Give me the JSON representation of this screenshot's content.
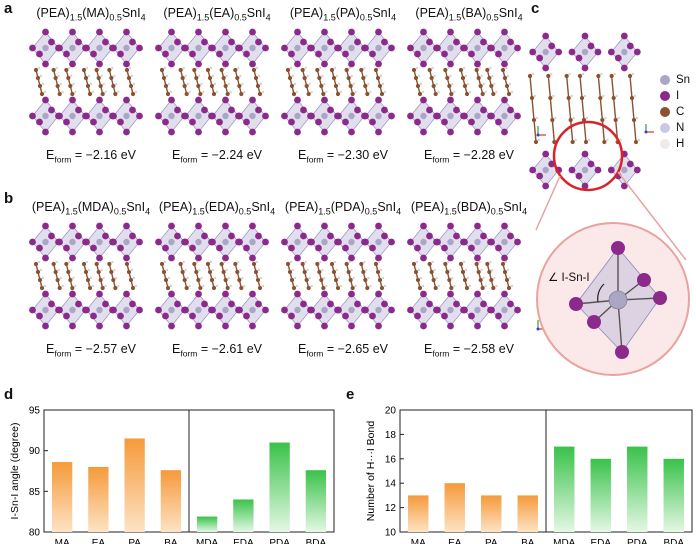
{
  "panels": {
    "a": "a",
    "b": "b",
    "c": "c",
    "d": "d",
    "e": "e"
  },
  "structures_a": [
    {
      "prefix": "(PEA)",
      "s1": "1.5",
      "cation": "(MA)",
      "s2": "0.5",
      "suffix": "SnI",
      "s3": "4",
      "e_label": "E",
      "e_sub": "form",
      "e_value": " = −2.16 eV"
    },
    {
      "prefix": "(PEA)",
      "s1": "1.5",
      "cation": "(EA)",
      "s2": "0.5",
      "suffix": "SnI",
      "s3": "4",
      "e_label": "E",
      "e_sub": "form",
      "e_value": " = −2.24 eV"
    },
    {
      "prefix": "(PEA)",
      "s1": "1.5",
      "cation": "(PA)",
      "s2": "0.5",
      "suffix": "SnI",
      "s3": "4",
      "e_label": "E",
      "e_sub": "form",
      "e_value": " = −2.30 eV"
    },
    {
      "prefix": "(PEA)",
      "s1": "1.5",
      "cation": "(BA)",
      "s2": "0.5",
      "suffix": "SnI",
      "s3": "4",
      "e_label": "E",
      "e_sub": "form",
      "e_value": " = −2.28 eV"
    }
  ],
  "structures_b": [
    {
      "prefix": "(PEA)",
      "s1": "1.5",
      "cation": "(MDA)",
      "s2": "0.5",
      "suffix": "SnI",
      "s3": "4",
      "e_label": "E",
      "e_sub": "form",
      "e_value": " = −2.57 eV"
    },
    {
      "prefix": "(PEA)",
      "s1": "1.5",
      "cation": "(EDA)",
      "s2": "0.5",
      "suffix": "SnI",
      "s3": "4",
      "e_label": "E",
      "e_sub": "form",
      "e_value": " = −2.61 eV"
    },
    {
      "prefix": "(PEA)",
      "s1": "1.5",
      "cation": "(PDA)",
      "s2": "0.5",
      "suffix": "SnI",
      "s3": "4",
      "e_label": "E",
      "e_sub": "form",
      "e_value": " = −2.65 eV"
    },
    {
      "prefix": "(PEA)",
      "s1": "1.5",
      "cation": "(BDA)",
      "s2": "0.5",
      "suffix": "SnI",
      "s3": "4",
      "e_label": "E",
      "e_sub": "form",
      "e_value": " = −2.58 eV"
    }
  ],
  "legend": [
    {
      "label": "Sn",
      "color": "#a9a6c6"
    },
    {
      "label": "I",
      "color": "#8b2a8b"
    },
    {
      "label": "C",
      "color": "#8a5230"
    },
    {
      "label": "N",
      "color": "#c9c9e6"
    },
    {
      "label": "H",
      "color": "#f0eaea"
    }
  ],
  "angle_label": "∠ I-Sn-I",
  "colors": {
    "sn": "#a9a6c6",
    "i": "#8b2a8b",
    "c": "#8a5230",
    "octa": "#c9c3de",
    "zoom": "#d9534f",
    "orange": "#f59a3a",
    "green": "#39c24a"
  },
  "chart_data": [
    {
      "type": "bar",
      "title": "",
      "xlabel": "",
      "ylabel": "I-Sn-I angle (degree)",
      "ylim": [
        80,
        95
      ],
      "yticks": [
        "80",
        "85",
        "90",
        "95"
      ],
      "categories": [
        "MA",
        "EA",
        "PA",
        "BA",
        "MDA",
        "EDA",
        "PDA",
        "BDA"
      ],
      "values": [
        88.6,
        88.0,
        91.5,
        87.6,
        81.9,
        84.0,
        91.0,
        87.6
      ],
      "groups": [
        "mono",
        "mono",
        "mono",
        "mono",
        "di",
        "di",
        "di",
        "di"
      ]
    },
    {
      "type": "bar",
      "title": "",
      "xlabel": "",
      "ylabel": "Number of H···I Bond",
      "ylim": [
        10,
        20
      ],
      "yticks": [
        "10",
        "12",
        "14",
        "16",
        "18",
        "20"
      ],
      "categories": [
        "MA",
        "EA",
        "PA",
        "BA",
        "MDA",
        "EDA",
        "PDA",
        "BDA"
      ],
      "values": [
        13,
        14,
        13,
        13,
        17,
        16,
        17,
        16
      ],
      "groups": [
        "mono",
        "mono",
        "mono",
        "mono",
        "di",
        "di",
        "di",
        "di"
      ]
    }
  ]
}
